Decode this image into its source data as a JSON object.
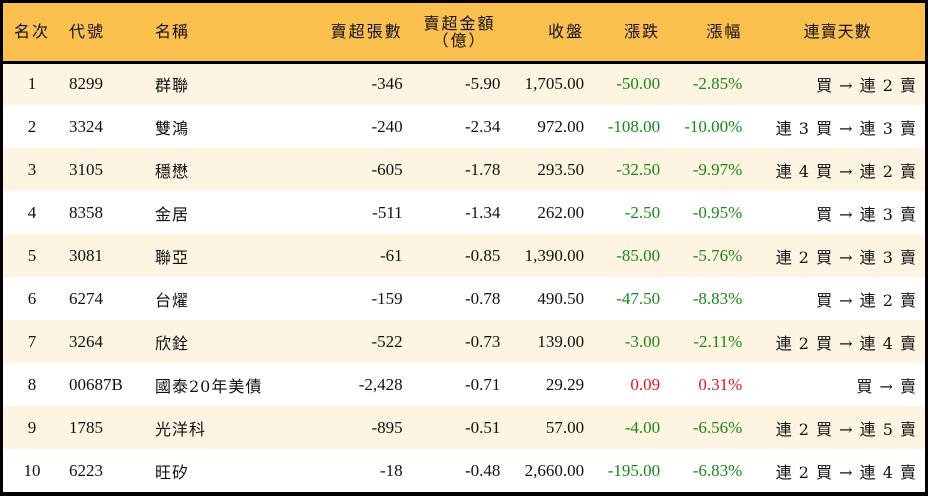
{
  "colors": {
    "header_bg": "#F9C04E",
    "row_alt_bg": "#FDF4E1",
    "row_bg": "#FFFFFF",
    "down": "#168A16",
    "up": "#E8121C",
    "border": "#000000"
  },
  "table": {
    "headers": {
      "rank": "名次",
      "code": "代號",
      "name": "名稱",
      "net_sell_lots": "賣超張數",
      "net_sell_amount": "賣超金額",
      "net_sell_amount_unit": "（億）",
      "close": "收盤",
      "change": "漲跌",
      "change_pct": "漲幅",
      "streak": "連賣天數"
    },
    "rows": [
      {
        "rank": "1",
        "code": "8299",
        "name": "群聯",
        "lots": "-346",
        "amount": "-5.90",
        "close": "1,705.00",
        "change": "-50.00",
        "pct": "-2.85%",
        "streak": "買 → 連 2 賣",
        "dir": "down"
      },
      {
        "rank": "2",
        "code": "3324",
        "name": "雙鴻",
        "lots": "-240",
        "amount": "-2.34",
        "close": "972.00",
        "change": "-108.00",
        "pct": "-10.00%",
        "streak": "連 3 買 → 連 3 賣",
        "dir": "down"
      },
      {
        "rank": "3",
        "code": "3105",
        "name": "穩懋",
        "lots": "-605",
        "amount": "-1.78",
        "close": "293.50",
        "change": "-32.50",
        "pct": "-9.97%",
        "streak": "連 4 買 → 連 2 賣",
        "dir": "down"
      },
      {
        "rank": "4",
        "code": "8358",
        "name": "金居",
        "lots": "-511",
        "amount": "-1.34",
        "close": "262.00",
        "change": "-2.50",
        "pct": "-0.95%",
        "streak": "買 → 連 3 賣",
        "dir": "down"
      },
      {
        "rank": "5",
        "code": "3081",
        "name": "聯亞",
        "lots": "-61",
        "amount": "-0.85",
        "close": "1,390.00",
        "change": "-85.00",
        "pct": "-5.76%",
        "streak": "連 2 買 → 連 3 賣",
        "dir": "down"
      },
      {
        "rank": "6",
        "code": "6274",
        "name": "台燿",
        "lots": "-159",
        "amount": "-0.78",
        "close": "490.50",
        "change": "-47.50",
        "pct": "-8.83%",
        "streak": "買 → 連 2 賣",
        "dir": "down"
      },
      {
        "rank": "7",
        "code": "3264",
        "name": "欣銓",
        "lots": "-522",
        "amount": "-0.73",
        "close": "139.00",
        "change": "-3.00",
        "pct": "-2.11%",
        "streak": "連 2 買 → 連 4 賣",
        "dir": "down"
      },
      {
        "rank": "8",
        "code": "00687B",
        "name": "國泰20年美債",
        "lots": "-2,428",
        "amount": "-0.71",
        "close": "29.29",
        "change": "0.09",
        "pct": "0.31%",
        "streak": "買 → 賣",
        "dir": "up"
      },
      {
        "rank": "9",
        "code": "1785",
        "name": "光洋科",
        "lots": "-895",
        "amount": "-0.51",
        "close": "57.00",
        "change": "-4.00",
        "pct": "-6.56%",
        "streak": "連 2 買 → 連 5 賣",
        "dir": "down"
      },
      {
        "rank": "10",
        "code": "6223",
        "name": "旺矽",
        "lots": "-18",
        "amount": "-0.48",
        "close": "2,660.00",
        "change": "-195.00",
        "pct": "-6.83%",
        "streak": "連 2 買 → 連 4 賣",
        "dir": "down"
      }
    ]
  }
}
